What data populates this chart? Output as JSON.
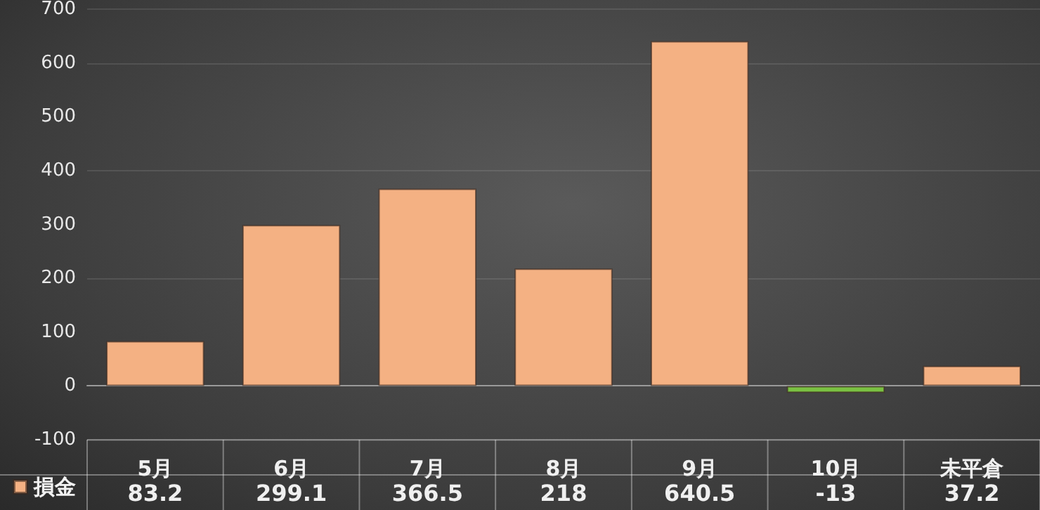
{
  "chart_data": {
    "type": "bar",
    "categories": [
      "5月",
      "6月",
      "7月",
      "8月",
      "9月",
      "10月",
      "未平倉"
    ],
    "series": [
      {
        "name": "損金",
        "color": "#f4b183",
        "colors": [
          "#f4b183",
          "#f4b183",
          "#f4b183",
          "#f4b183",
          "#f4b183",
          "#7ac143",
          "#f4b183"
        ],
        "values": [
          83.2,
          299.1,
          366.5,
          218,
          640.5,
          -13,
          37.2
        ]
      }
    ],
    "ylim": [
      -100,
      700
    ],
    "yticks": [
      -100,
      0,
      100,
      200,
      300,
      400,
      500,
      600,
      700
    ],
    "grid": "y",
    "legend": "bottom left",
    "data_labels": true
  }
}
